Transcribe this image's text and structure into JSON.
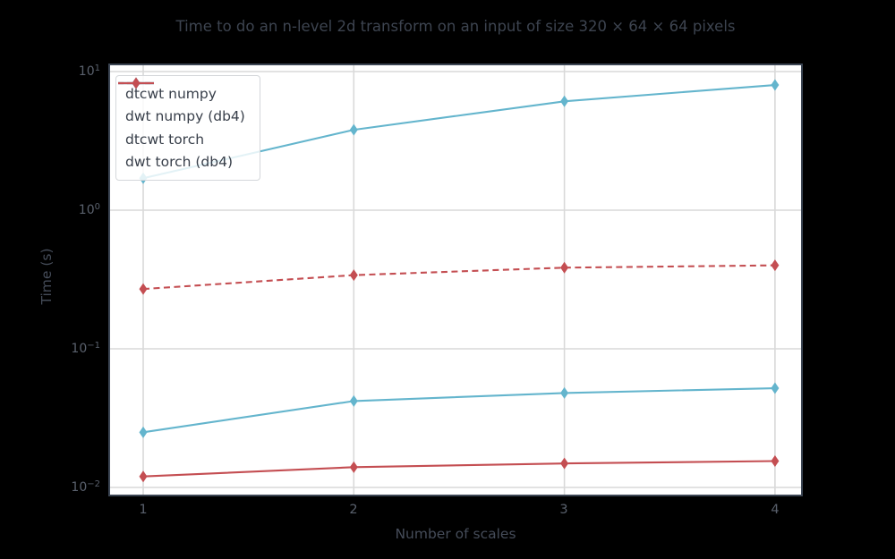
{
  "title": "Time to do an n-level 2d transform on an input of size 320 × 64 × 64 pixels",
  "chart_data": {
    "type": "line",
    "x": [
      1,
      2,
      3,
      4
    ],
    "series": [
      {
        "name": "dtcwt numpy",
        "color": "#64b5cd",
        "style": "solid",
        "marker": "thin-diamond",
        "values": [
          1.7,
          3.8,
          6.1,
          8.0
        ]
      },
      {
        "name": "dwt numpy (db4)",
        "color": "#c44e52",
        "style": "dashed",
        "marker": "thin-diamond",
        "values": [
          0.27,
          0.34,
          0.385,
          0.4
        ]
      },
      {
        "name": "dtcwt torch",
        "color": "#64b5cd",
        "style": "solid",
        "marker": "thin-diamond",
        "values": [
          0.025,
          0.042,
          0.048,
          0.052
        ]
      },
      {
        "name": "dwt torch (db4)",
        "color": "#c44e52",
        "style": "solid",
        "marker": "thin-diamond",
        "values": [
          0.012,
          0.014,
          0.0149,
          0.0155
        ]
      }
    ],
    "xlabel": "Number of scales",
    "ylabel": "Time (s)",
    "xscale": "linear",
    "yscale": "log",
    "xlim": [
      0.85,
      4.15
    ],
    "ylim": [
      0.0089,
      11.1
    ],
    "xticks": [
      "1",
      "2",
      "3",
      "4"
    ],
    "ytick_values": [
      10,
      1,
      0.1,
      0.01
    ],
    "yticks": [
      {
        "base": "10",
        "exp": "1"
      },
      {
        "base": "10",
        "exp": "0"
      },
      {
        "base": "10",
        "exp": "−1"
      },
      {
        "base": "10",
        "exp": "−2"
      }
    ],
    "grid": true,
    "legend_position": "upper left"
  },
  "colors": {
    "page_bg": "#000000",
    "plot_bg": "#ffffff",
    "grid": "#d9d9d9",
    "spine": "#3b4553",
    "title_text": "#3d4450",
    "tick_text": "#5a616d",
    "label_text": "#454c59",
    "legend_text": "#383f4a",
    "accent_blue": "#64b5cd",
    "accent_red": "#c44e52"
  }
}
